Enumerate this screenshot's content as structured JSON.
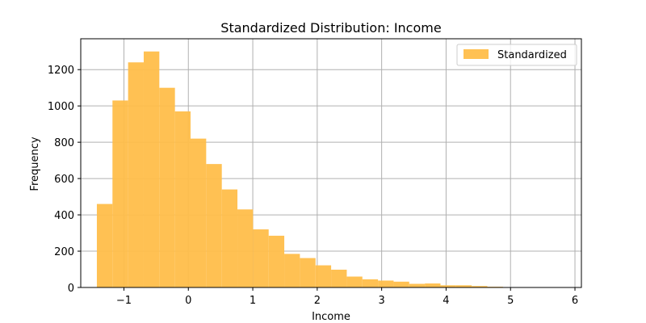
{
  "chart_data": {
    "type": "bar",
    "title": "Standardized Distribution: Income",
    "xlabel": "Income",
    "ylabel": "Frequency",
    "xlim": [
      -1.67,
      6.1
    ],
    "ylim": [
      0,
      1370
    ],
    "xticks": [
      -1,
      0,
      1,
      2,
      3,
      4,
      5,
      6
    ],
    "xtick_labels": [
      "−1",
      "0",
      "1",
      "2",
      "3",
      "4",
      "5",
      "6"
    ],
    "yticks": [
      0,
      200,
      400,
      600,
      800,
      1000,
      1200
    ],
    "ytick_labels": [
      "0",
      "200",
      "400",
      "600",
      "800",
      "1000",
      "1200"
    ],
    "grid": true,
    "legend_position": "top-right",
    "color": "#FFBE4A",
    "series": [
      {
        "name": "Standardized",
        "bin_start": -1.42,
        "bin_width": 0.2424,
        "values": [
          460,
          1030,
          1240,
          1300,
          1100,
          970,
          820,
          680,
          540,
          430,
          320,
          285,
          185,
          162,
          122,
          98,
          60,
          45,
          38,
          32,
          20,
          22,
          12,
          12,
          8,
          4,
          2,
          2,
          2,
          1
        ]
      }
    ]
  }
}
